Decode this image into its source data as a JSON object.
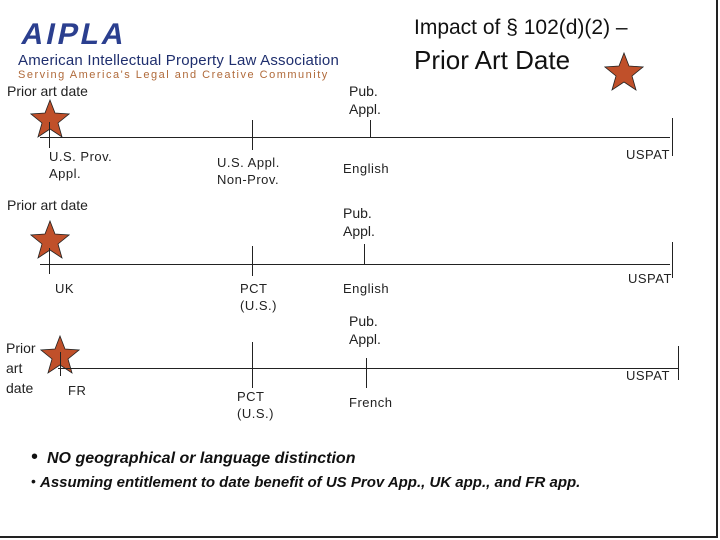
{
  "logo": {
    "wordmark": "AIPLA",
    "org_name": "American Intellectual Property Law Association",
    "tagline": "Serving America's Legal and Creative Community"
  },
  "title": {
    "line1": "Impact of § 102(d)(2) –",
    "line2": "Prior Art Date"
  },
  "colors": {
    "star": "#c0502a",
    "star_stroke": "#222222",
    "logo_blue": "#2b3f8f"
  },
  "timelines": [
    {
      "prior_art_label": "Prior art date",
      "pub_label": "Pub.\nAppl.",
      "events": {
        "origin": "U.S. Prov.\nAppl.",
        "filing": "U.S. Appl.\nNon-Prov.",
        "language": "English",
        "uspat": "USPAT"
      }
    },
    {
      "prior_art_label": "Prior art date",
      "pub_label": "Pub.\nAppl.",
      "events": {
        "origin": "UK",
        "filing": "PCT\n(U.S.)",
        "language": "English",
        "uspat": "USPAT"
      }
    },
    {
      "prior_art_label": "Prior\nart\ndate",
      "pub_label": "Pub.\nAppl.",
      "events": {
        "origin": "FR",
        "filing": "PCT\n(U.S.)",
        "language": "French",
        "uspat": "USPAT"
      }
    }
  ],
  "bullets": [
    "NO geographical or language distinction",
    "Assuming entitlement to date benefit of US Prov App., UK app., and FR app."
  ]
}
